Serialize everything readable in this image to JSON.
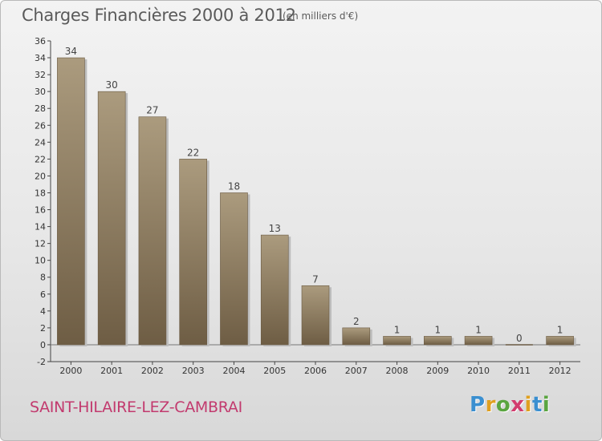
{
  "chart_data": {
    "type": "bar",
    "title": "Charges Financières 2000 à 2012",
    "subtitle": "(en milliers d'€)",
    "categories": [
      "2000",
      "2001",
      "2002",
      "2003",
      "2004",
      "2005",
      "2006",
      "2007",
      "2008",
      "2009",
      "2010",
      "2011",
      "2012"
    ],
    "values": [
      34,
      30,
      27,
      22,
      18,
      13,
      7,
      2,
      1,
      1,
      1,
      0,
      1
    ],
    "data_labels": [
      "34",
      "30",
      "27",
      "22",
      "18",
      "13",
      "7",
      "2",
      "1",
      "1",
      "1",
      "0",
      "1"
    ],
    "ylim": [
      -2,
      36
    ],
    "yticks": [
      -2,
      0,
      2,
      4,
      6,
      8,
      10,
      12,
      14,
      16,
      18,
      20,
      22,
      24,
      26,
      28,
      30,
      32,
      34,
      36
    ],
    "xlabel": "",
    "ylabel": "",
    "grid": false,
    "bar_color": "#8c7b5f"
  },
  "footer": {
    "town": "SAINT-HILAIRE-LEZ-CAMBRAI",
    "logo_letters": [
      "P",
      "r",
      "o",
      "x",
      "i",
      "t",
      "i"
    ],
    "logo_colors": [
      "#3a8fd0",
      "#e0a020",
      "#5aa540",
      "#d23c6e",
      "#e0a020",
      "#3a8fd0",
      "#5aa540"
    ]
  }
}
